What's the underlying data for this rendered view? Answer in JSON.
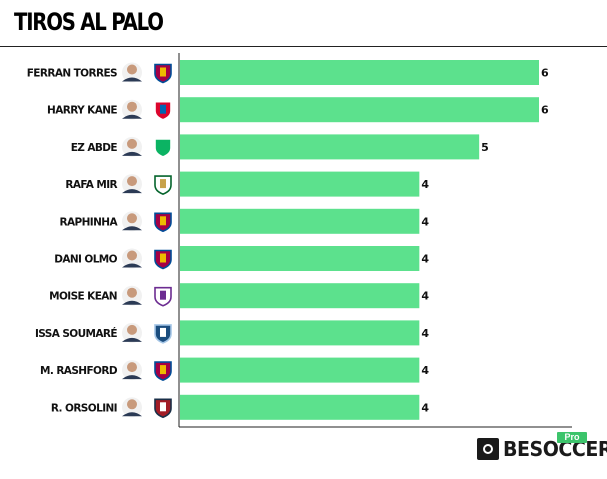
{
  "page": {
    "title": "TIROS AL PALO"
  },
  "chart_data": {
    "type": "bar",
    "orientation": "horizontal",
    "title": "TIROS AL PALO",
    "categories": [
      "FERRAN TORRES",
      "HARRY KANE",
      "EZ ABDE",
      "RAFA MIR",
      "RAPHINHA",
      "DANI OLMO",
      "MOISE KEAN",
      "ISSA SOUMARÉ",
      "M. RASHFORD",
      "R. ORSOLINI"
    ],
    "values": [
      6,
      6,
      5,
      4,
      4,
      4,
      4,
      4,
      4,
      4
    ],
    "teams": [
      "barcelona-crest-icon",
      "bayern-crest-icon",
      "betis-crest-icon",
      "elche-crest-icon",
      "barcelona-crest-icon",
      "barcelona-crest-icon",
      "fiorentina-crest-icon",
      "le-havre-crest-icon",
      "barcelona-crest-icon",
      "bologna-crest-icon"
    ],
    "xlim": [
      0,
      6
    ],
    "grid": false,
    "data_labels": true,
    "bar_color": "#5ce18d"
  },
  "brand": {
    "name": "BESOCCER",
    "badge": "Pro"
  }
}
